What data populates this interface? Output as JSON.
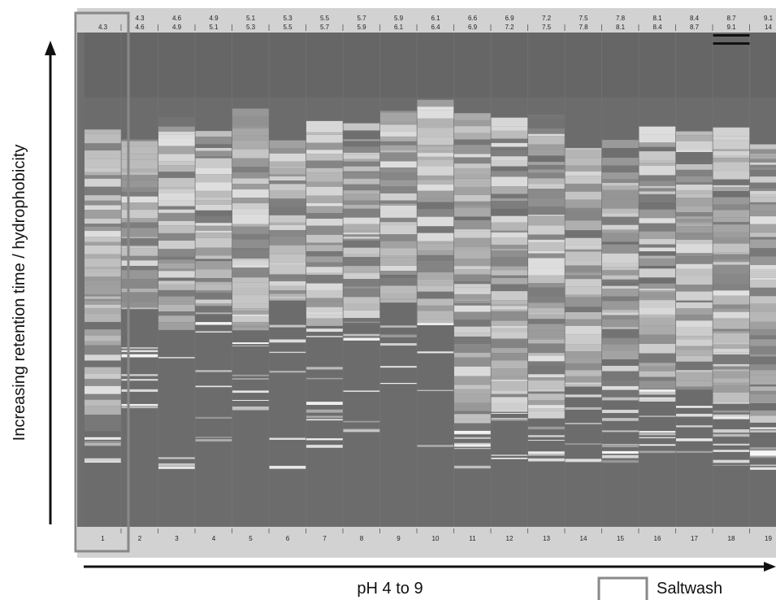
{
  "lanes": [
    {
      "labels": [
        "4.3"
      ],
      "number": "1"
    },
    {
      "labels": [
        "4.3",
        "4.6"
      ],
      "number": "2"
    },
    {
      "labels": [
        "4.6",
        "4.9"
      ],
      "number": "3"
    },
    {
      "labels": [
        "4.9",
        "5.1"
      ],
      "number": "4"
    },
    {
      "labels": [
        "5.1",
        "5.3"
      ],
      "number": "5"
    },
    {
      "labels": [
        "5.3",
        "5.5"
      ],
      "number": "6"
    },
    {
      "labels": [
        "5.5",
        "5.7"
      ],
      "number": "7"
    },
    {
      "labels": [
        "5.7",
        "5.9"
      ],
      "number": "8"
    },
    {
      "labels": [
        "5.9",
        "6.1"
      ],
      "number": "9"
    },
    {
      "labels": [
        "6.1",
        "6.4"
      ],
      "number": "10"
    },
    {
      "labels": [
        "6.6",
        "6.9"
      ],
      "number": "11"
    },
    {
      "labels": [
        "6.9",
        "7.2"
      ],
      "number": "12"
    },
    {
      "labels": [
        "7.2",
        "7.5"
      ],
      "number": "13"
    },
    {
      "labels": [
        "7.5",
        "7.8"
      ],
      "number": "14"
    },
    {
      "labels": [
        "7.8",
        "8.1"
      ],
      "number": "15"
    },
    {
      "labels": [
        "8.1",
        "8.4"
      ],
      "number": "16"
    },
    {
      "labels": [
        "8.4",
        "8.7"
      ],
      "number": "17"
    },
    {
      "labels": [
        "8.7",
        "9.1"
      ],
      "number": "18"
    },
    {
      "labels": [
        "9.1",
        "14"
      ],
      "number": "19"
    }
  ],
  "y_axis_label": "Increasing retention time / hydrophobicity",
  "x_axis_label": "pH 4 to 9",
  "legend": {
    "label": "Saltwash"
  }
}
